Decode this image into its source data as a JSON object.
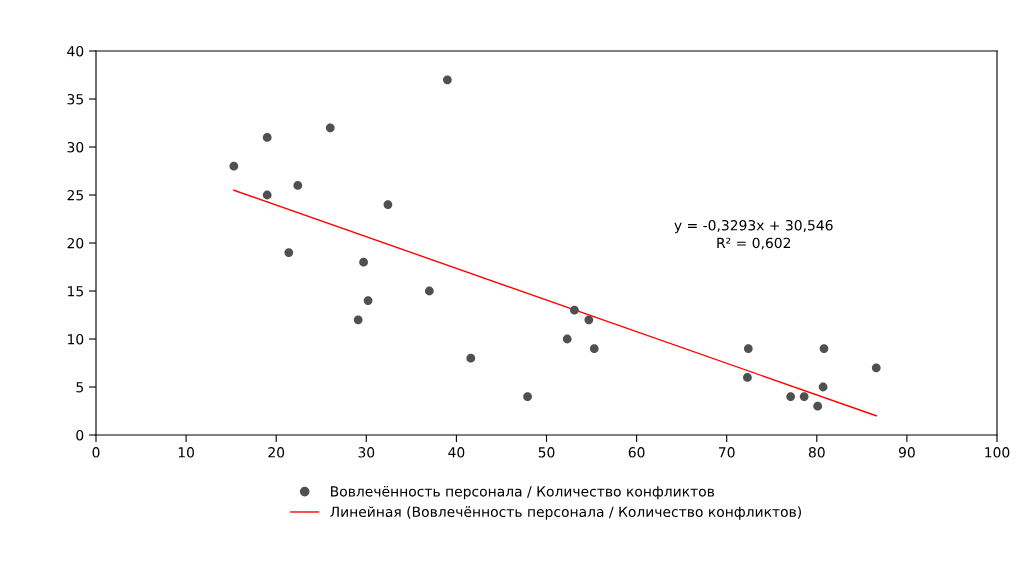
{
  "chart_data": {
    "type": "scatter",
    "xlim": [
      0,
      100
    ],
    "xticks": [
      0,
      10,
      20,
      30,
      40,
      50,
      60,
      70,
      80,
      90,
      100
    ],
    "ylim": [
      0,
      40
    ],
    "yticks": [
      0,
      5,
      10,
      15,
      20,
      25,
      30,
      35,
      40
    ],
    "grid": false,
    "legend": "bottom",
    "series": [
      {
        "name": "Вовлечённость персонала / Количество конфликтов",
        "color": "#505050",
        "marker": "circle",
        "x": [
          15.3,
          19.0,
          19.0,
          26.0,
          22.4,
          39.0,
          32.4,
          21.4,
          29.7,
          37.0,
          30.2,
          29.1,
          41.6,
          47.9,
          53.1,
          54.7,
          52.3,
          55.3,
          72.4,
          72.3,
          77.1,
          78.6,
          80.1,
          80.7,
          80.8,
          86.6
        ],
        "values": [
          28,
          31,
          25,
          32,
          26,
          37,
          24,
          19,
          18,
          15,
          14,
          12,
          8,
          4,
          13,
          12,
          10,
          9,
          9,
          6,
          4,
          4,
          3,
          5,
          9,
          7
        ]
      },
      {
        "name": "Линейная (Вовлечённость персонала / Количество конфликтов)",
        "type": "line",
        "color": "#ff0000",
        "line_style": "solid",
        "x": [
          15.3,
          86.6
        ],
        "values": [
          25.5,
          2.0
        ]
      }
    ],
    "annotations": [
      "y = -0,3293x + 30,546\nR² = 0,602"
    ]
  }
}
